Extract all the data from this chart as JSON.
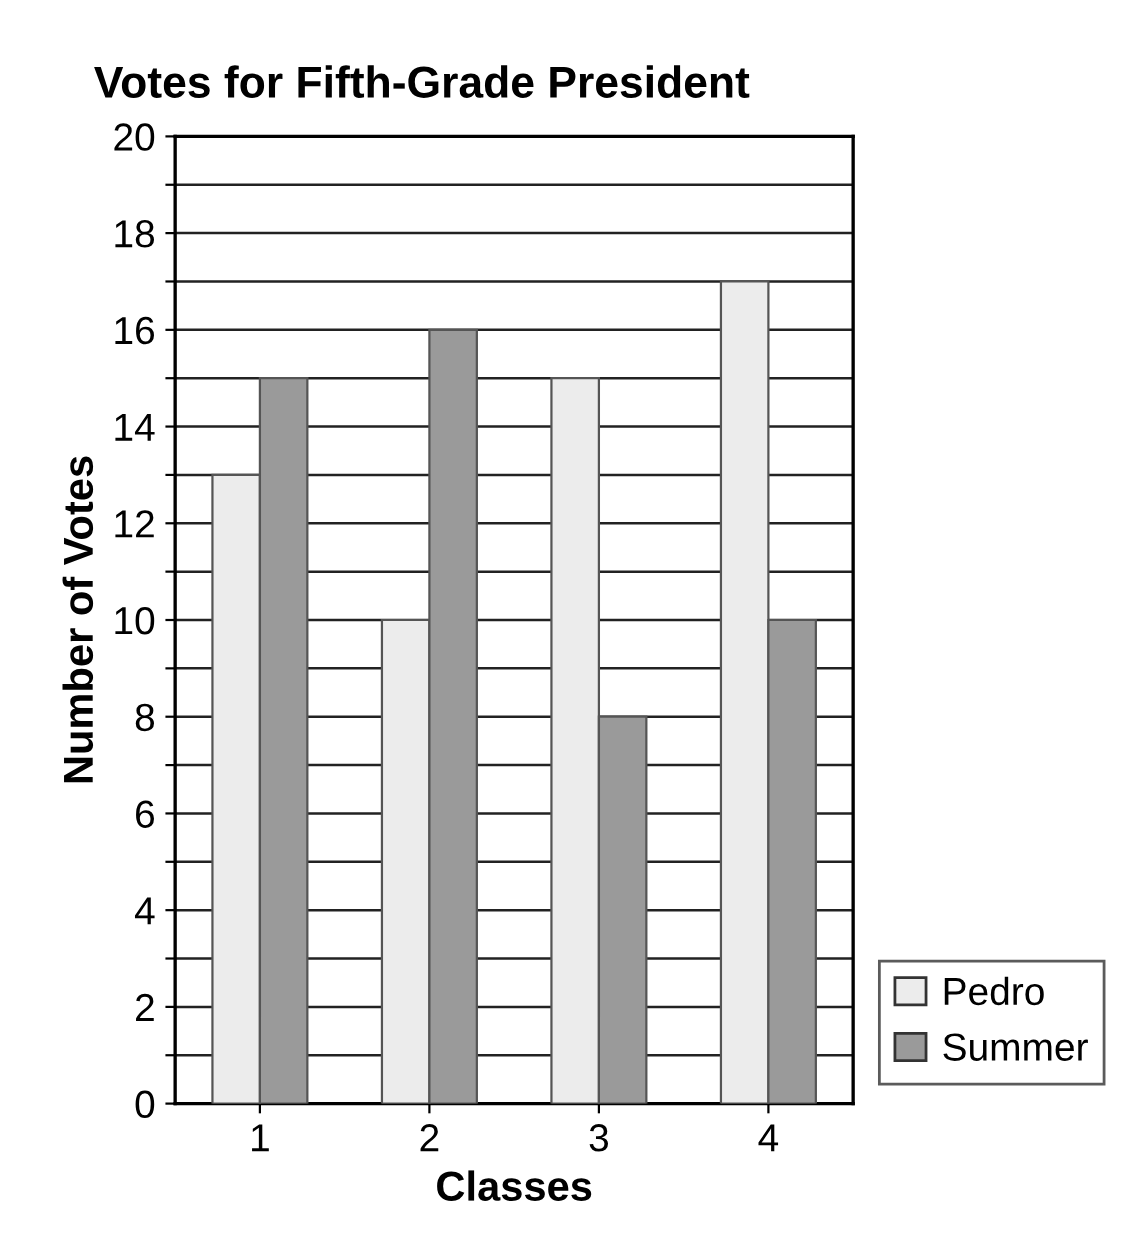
{
  "chart_data": {
    "type": "bar",
    "title": "Votes for Fifth-Grade President",
    "xlabel": "Classes",
    "ylabel": "Number of Votes",
    "categories": [
      "1",
      "2",
      "3",
      "4"
    ],
    "series": [
      {
        "name": "Pedro",
        "color": "#ececec",
        "values": [
          13,
          10,
          15,
          17
        ]
      },
      {
        "name": "Summer",
        "color": "#9a9a9a",
        "values": [
          15,
          16,
          8,
          10
        ]
      }
    ],
    "ylim": [
      0,
      20
    ],
    "yticks": [
      0,
      {
        "value": 1,
        "label": null
      },
      2,
      {
        "value": 3,
        "label": null
      },
      4,
      {
        "value": 5,
        "label": null
      },
      6,
      {
        "value": 7,
        "label": null
      },
      8,
      {
        "value": 9,
        "label": null
      },
      10,
      {
        "value": 11,
        "label": null
      },
      12,
      {
        "value": 13,
        "label": null
      },
      14,
      {
        "value": 15,
        "label": null
      },
      16,
      {
        "value": 17,
        "label": null
      },
      18,
      {
        "value": 19,
        "label": null
      },
      20
    ],
    "grid": "y",
    "legend": "bottom right"
  }
}
